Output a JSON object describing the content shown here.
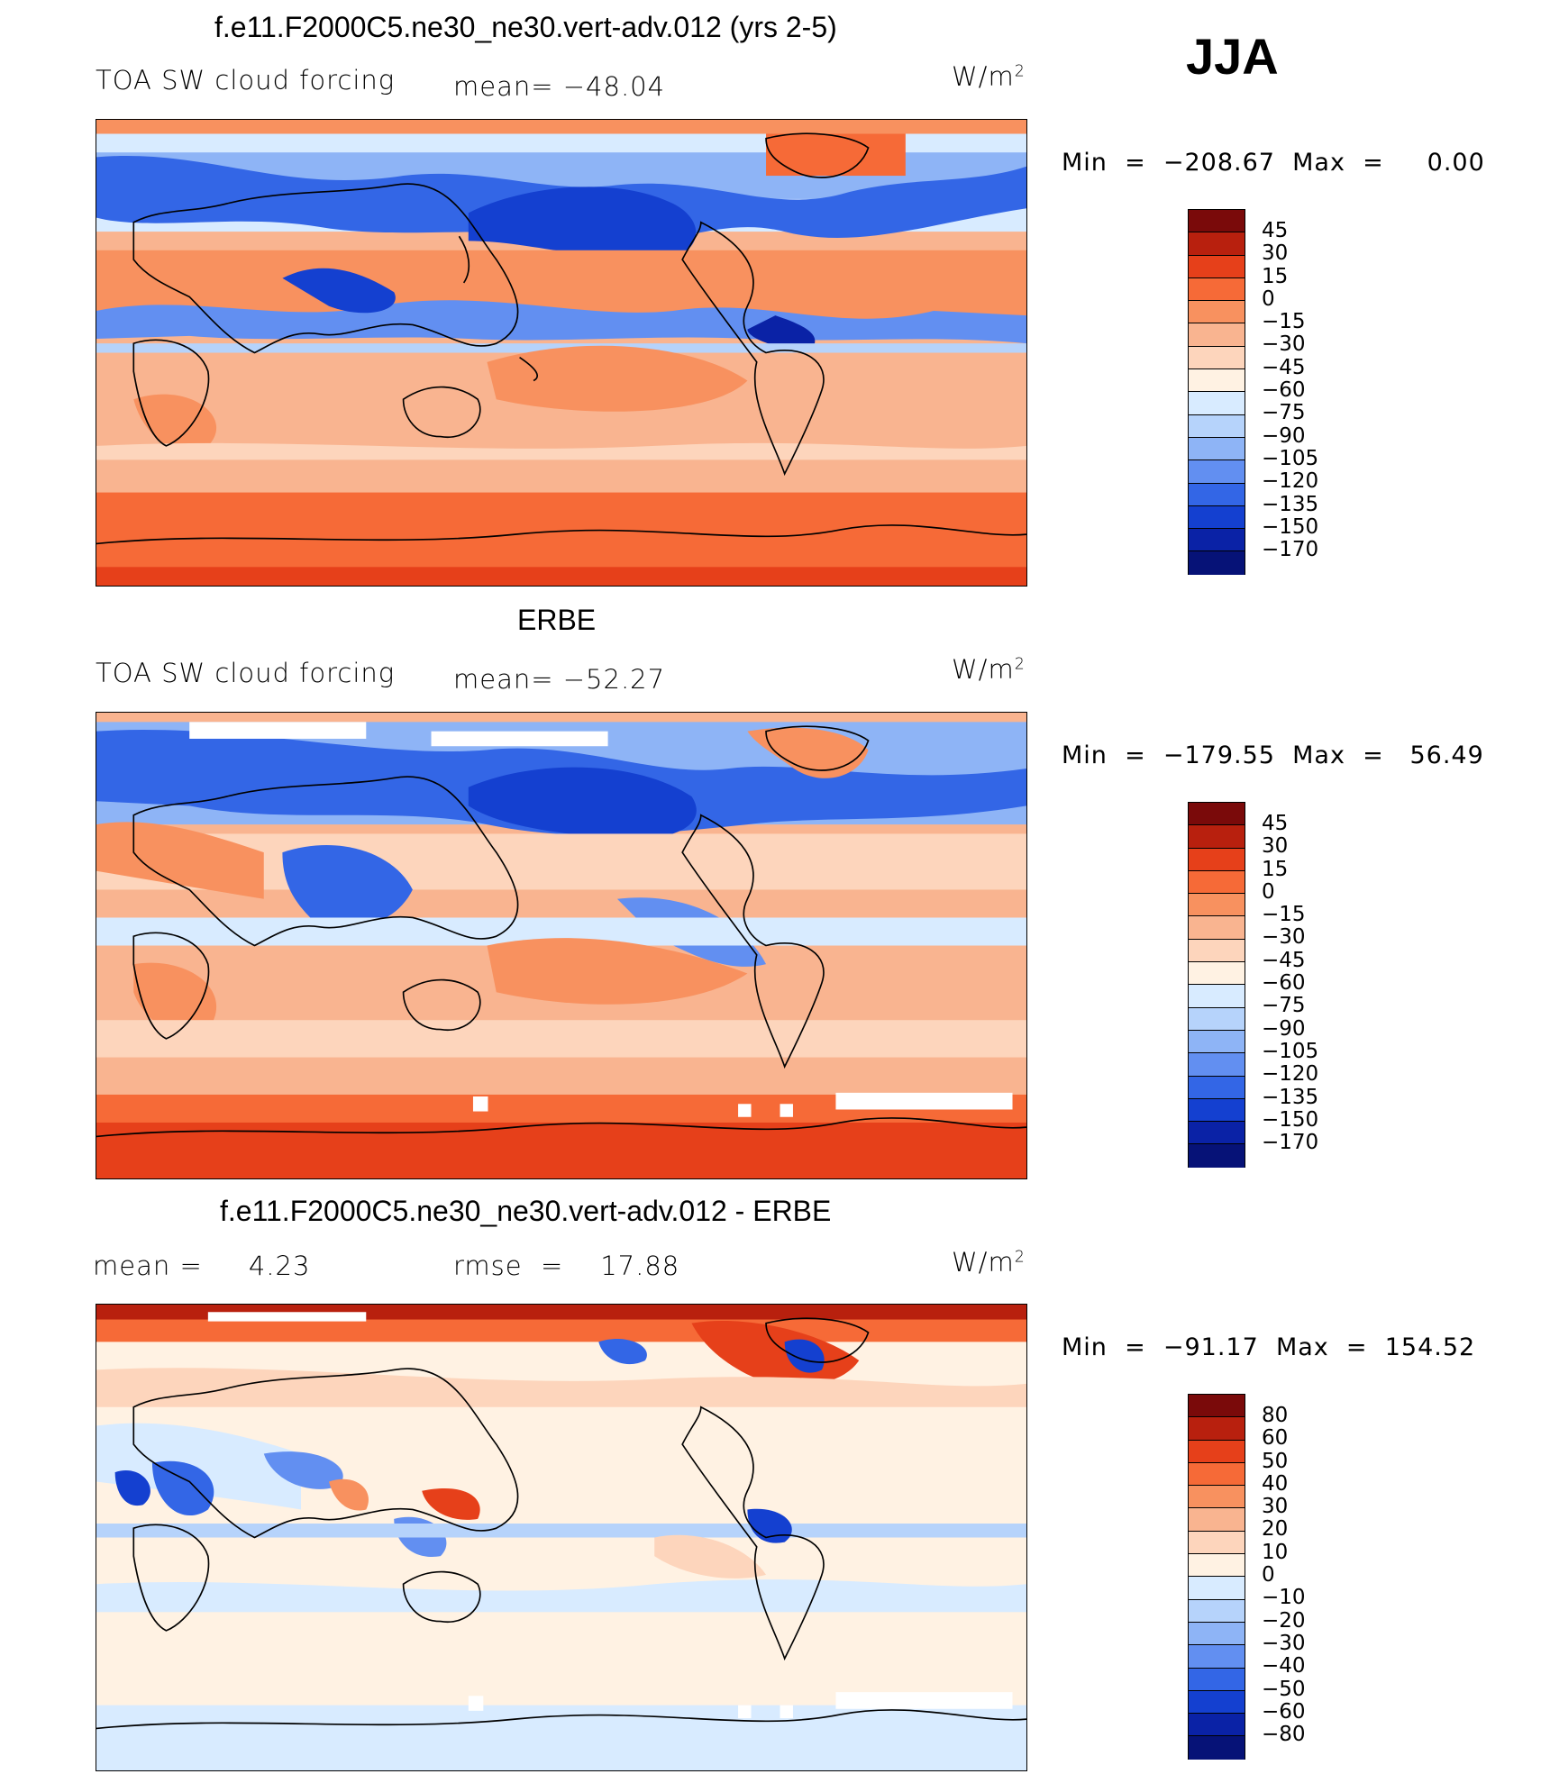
{
  "season": "JJA",
  "panels": [
    {
      "title": "f.e11.F2000C5.ne30_ne30.vert-adv.012 (yrs 2-5)",
      "left": "TOA SW cloud forcing",
      "middle": "mean= −48.04",
      "units_base": "W/m",
      "units_exp": "2",
      "minmax": "Min  =  −208.67  Max  =     0.00",
      "levels": [
        "45",
        "30",
        "15",
        "0",
        "−15",
        "−30",
        "−45",
        "−60",
        "−75",
        "−90",
        "−105",
        "−120",
        "−135",
        "−150",
        "−170"
      ]
    },
    {
      "title": "ERBE",
      "left": "TOA SW cloud forcing",
      "middle": "mean= −52.27",
      "units_base": "W/m",
      "units_exp": "2",
      "minmax": "Min  =  −179.55  Max  =   56.49",
      "levels": [
        "45",
        "30",
        "15",
        "0",
        "−15",
        "−30",
        "−45",
        "−60",
        "−75",
        "−90",
        "−105",
        "−120",
        "−135",
        "−150",
        "−170"
      ]
    },
    {
      "title": "f.e11.F2000C5.ne30_ne30.vert-adv.012 - ERBE",
      "left": "mean =     4.23",
      "middle": "rmse  =    17.88",
      "units_base": "W/m",
      "units_exp": "2",
      "minmax": "Min  =  −91.17  Max  =  154.52",
      "levels": [
        "80",
        "60",
        "50",
        "40",
        "30",
        "20",
        "10",
        "0",
        "−10",
        "−20",
        "−30",
        "−40",
        "−50",
        "−60",
        "−80"
      ]
    }
  ],
  "colors": {
    "scale": [
      "#7a0a0a",
      "#b8200e",
      "#e6401a",
      "#f66a37",
      "#f8915f",
      "#f9b490",
      "#fdd5bc",
      "#fff2e3",
      "#d8ebff",
      "#b6d3fb",
      "#8eb4f6",
      "#628ff1",
      "#3366e6",
      "#1440d0",
      "#0a22a6",
      "#061277"
    ]
  },
  "chart_data": [
    {
      "type": "heatmap",
      "title": "f.e11.F2000C5.ne30_ne30.vert-adv.012 (yrs 2-5)",
      "variable": "TOA SW cloud forcing",
      "units": "W/m2",
      "mean": -48.04,
      "min": -208.67,
      "max": 0.0,
      "contour_levels": [
        45,
        30,
        15,
        0,
        -15,
        -30,
        -45,
        -60,
        -75,
        -90,
        -105,
        -120,
        -135,
        -150,
        -170
      ]
    },
    {
      "type": "heatmap",
      "title": "ERBE",
      "variable": "TOA SW cloud forcing",
      "units": "W/m2",
      "mean": -52.27,
      "min": -179.55,
      "max": 56.49,
      "contour_levels": [
        45,
        30,
        15,
        0,
        -15,
        -30,
        -45,
        -60,
        -75,
        -90,
        -105,
        -120,
        -135,
        -150,
        -170
      ]
    },
    {
      "type": "heatmap",
      "title": "f.e11.F2000C5.ne30_ne30.vert-adv.012 - ERBE",
      "units": "W/m2",
      "mean": 4.23,
      "rmse": 17.88,
      "min": -91.17,
      "max": 154.52,
      "contour_levels": [
        80,
        60,
        50,
        40,
        30,
        20,
        10,
        0,
        -10,
        -20,
        -30,
        -40,
        -50,
        -60,
        -80
      ]
    }
  ]
}
